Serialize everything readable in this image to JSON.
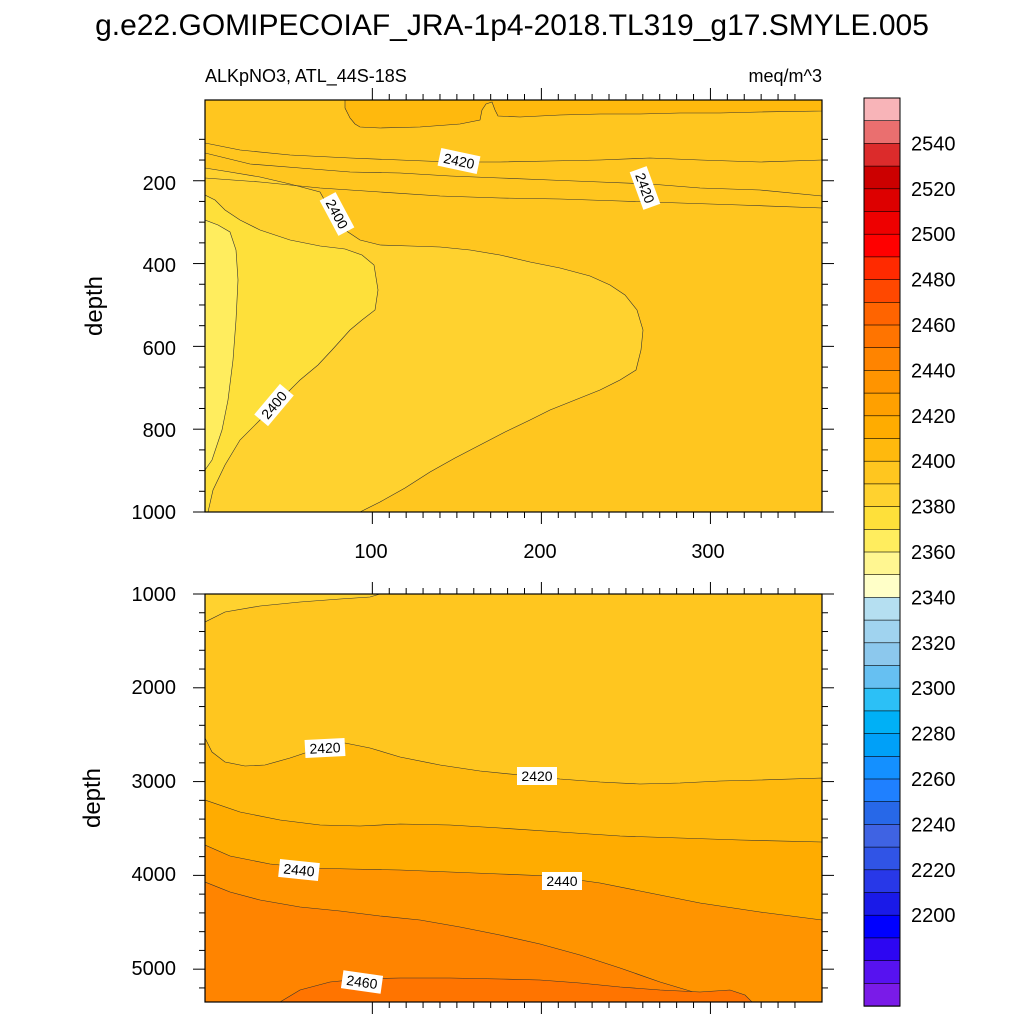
{
  "title": "g.e22.GOMIPECOIAF_JRA-1p4-2018.TL319_g17.SMYLE.005",
  "chart_data": [
    {
      "type": "heatmap",
      "panel": "upper",
      "left_string": "ALKpNO3, ATL_44S-18S",
      "right_string": "meq/m^3",
      "ylabel": "depth",
      "xlabel": "",
      "xlim": [
        1,
        366
      ],
      "ylim": [
        1000,
        5
      ],
      "y_reversed": true,
      "x_ticks": [
        100,
        200,
        300
      ],
      "y_ticks": [
        200,
        400,
        600,
        800,
        1000
      ],
      "contour_levels": [
        2200,
        2210,
        2220,
        2230,
        2240,
        2250,
        2260,
        2270,
        2280,
        2290,
        2300,
        2310,
        2320,
        2330,
        2340,
        2350,
        2360,
        2370,
        2380,
        2390,
        2400,
        2410,
        2420,
        2430,
        2440,
        2450,
        2460,
        2470,
        2480,
        2490,
        2500,
        2510,
        2520,
        2530,
        2540,
        2550
      ],
      "contour_labels": [
        {
          "text": "2420",
          "x": 150,
          "depth": 155
        },
        {
          "text": "2420",
          "x": 262,
          "depth": 190
        },
        {
          "text": "2400",
          "x": 80,
          "depth": 255
        },
        {
          "text": "2400",
          "x": 40,
          "depth": 770
        }
      ],
      "regions": [
        {
          "range": "2430-2440",
          "description": "upper layer, depth ~0-120 m, x > 170"
        },
        {
          "range": "2420-2430",
          "description": "surface band 0-200 m and deep/right side"
        },
        {
          "range": "2410-2420",
          "description": "main body 200-1000 m"
        },
        {
          "range": "2400-2410",
          "description": "core near x 0-100, depth 220-1000 m"
        },
        {
          "range": "2390-2400",
          "description": "left edge x 0-20, depth 250-900 m"
        }
      ]
    },
    {
      "type": "heatmap",
      "panel": "lower",
      "ylabel": "depth",
      "xlabel": "",
      "xlim": [
        1,
        366
      ],
      "ylim": [
        5350,
        1000
      ],
      "y_reversed": true,
      "y_ticks": [
        1000,
        2000,
        3000,
        4000,
        5000
      ],
      "contour_labels": [
        {
          "text": "2420",
          "x": 70,
          "depth": 2680
        },
        {
          "text": "2420",
          "x": 198,
          "depth": 2960
        },
        {
          "text": "2440",
          "x": 55,
          "depth": 4000
        },
        {
          "text": "2440",
          "x": 215,
          "depth": 4090
        },
        {
          "text": "2460",
          "x": 94,
          "depth": 5160
        }
      ],
      "regions": [
        {
          "range": "2410-2420",
          "description": "top left corner near 1000 m"
        },
        {
          "range": "2420-2430",
          "description": "1000-2700 m"
        },
        {
          "range": "2430-2440",
          "description": "2700-3500 m"
        },
        {
          "range": "2440-2450",
          "description": "3500-4200 m"
        },
        {
          "range": "2450-2460",
          "description": "4200-5000 m"
        },
        {
          "range": "2460-2470",
          "description": "bottom > 5000 m, x 45-320"
        }
      ]
    },
    {
      "type": "colorbar",
      "labels": [
        "2540",
        "2520",
        "2500",
        "2480",
        "2460",
        "2440",
        "2420",
        "2400",
        "2380",
        "2360",
        "2340",
        "2320",
        "2300",
        "2280",
        "2260",
        "2240",
        "2220",
        "2200"
      ],
      "colors_top_to_bottom": [
        "#f8b4b8",
        "#ea6f6f",
        "#dc2b2b",
        "#cc0000",
        "#dd0000",
        "#ee0000",
        "#ff0000",
        "#ff2a00",
        "#ff4800",
        "#ff6400",
        "#ff7400",
        "#ff8400",
        "#ff9400",
        "#ffa000",
        "#ffac00",
        "#ffb90d",
        "#ffc61f",
        "#ffd22f",
        "#fee03a",
        "#ffed5e",
        "#fff691",
        "#ffffc8",
        "#b5dff1",
        "#a0d3ef",
        "#8cc8ed",
        "#66c0f2",
        "#2cc0f6",
        "#00b0f6",
        "#00a0f8",
        "#1490ff",
        "#1f80ff",
        "#2768e8",
        "#3f63e3",
        "#3054e6",
        "#2838e8",
        "#1a1ae8",
        "#0000ff",
        "#2d06f2",
        "#5712f0",
        "#7a1be8"
      ]
    }
  ]
}
